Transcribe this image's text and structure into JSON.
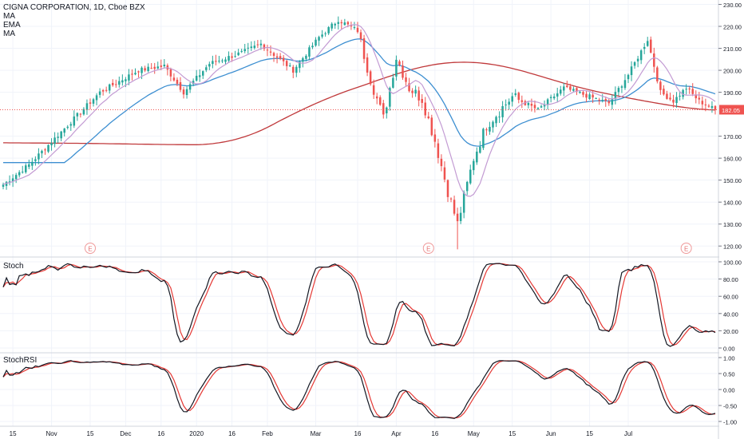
{
  "header": {
    "title": "CIGNA CORPORATION, 1D, Cboe BZX",
    "indicators": [
      "MA",
      "EMA",
      "MA"
    ]
  },
  "colors": {
    "up": "#26a69a",
    "down": "#ef5350",
    "ma_fast": "#c39bd3",
    "ma_mid": "#3d8fd1",
    "ma_slow": "#c0393b",
    "stoch_k": "#131722",
    "stoch_d": "#e53935",
    "last_tag": "#ef5350"
  },
  "price_axis": {
    "ticks": [
      "230.00",
      "220.00",
      "210.00",
      "200.00",
      "190.00",
      "170.00",
      "160.00",
      "150.00",
      "140.00",
      "130.00",
      "120.00"
    ],
    "last_price": "182.05"
  },
  "earnings": [
    "E",
    "E",
    "E"
  ],
  "panels": {
    "stoch": {
      "label": "Stoch",
      "ticks": [
        "100.00",
        "80.00",
        "60.00",
        "40.00",
        "20.00",
        "0.00"
      ]
    },
    "stochrsi": {
      "label": "StochRSI",
      "ticks": [
        "1.00",
        "0.50",
        "0.00",
        "-0.50",
        "-1.00"
      ]
    }
  },
  "x_axis": {
    "labels": [
      "15",
      "Nov",
      "15",
      "Dec",
      "16",
      "2020",
      "16",
      "Feb",
      "Mar",
      "16",
      "Apr",
      "16",
      "May",
      "15",
      "Jun",
      "15",
      "Jul"
    ]
  },
  "chart_data": {
    "type": "candlestick",
    "title": "CIGNA CORPORATION, 1D, Cboe BZX",
    "ylim": [
      115,
      232
    ],
    "x_labels": [
      "15",
      "Nov",
      "15",
      "Dec",
      "16",
      "2020",
      "16",
      "Feb",
      "Mar",
      "16",
      "Apr",
      "16",
      "May",
      "15",
      "Jun",
      "15",
      "Jul"
    ],
    "close_keypoints": [
      {
        "bar": 0,
        "close": 148
      },
      {
        "bar": 8,
        "close": 157
      },
      {
        "bar": 18,
        "close": 172
      },
      {
        "bar": 30,
        "close": 190
      },
      {
        "bar": 42,
        "close": 200
      },
      {
        "bar": 50,
        "close": 202
      },
      {
        "bar": 56,
        "close": 190
      },
      {
        "bar": 64,
        "close": 203
      },
      {
        "bar": 74,
        "close": 208
      },
      {
        "bar": 80,
        "close": 212
      },
      {
        "bar": 90,
        "close": 200
      },
      {
        "bar": 98,
        "close": 215
      },
      {
        "bar": 104,
        "close": 223
      },
      {
        "bar": 110,
        "close": 218
      },
      {
        "bar": 114,
        "close": 196
      },
      {
        "bar": 118,
        "close": 178
      },
      {
        "bar": 122,
        "close": 206
      },
      {
        "bar": 126,
        "close": 192
      },
      {
        "bar": 130,
        "close": 187
      },
      {
        "bar": 134,
        "close": 168
      },
      {
        "bar": 138,
        "close": 145
      },
      {
        "bar": 141,
        "close": 130
      },
      {
        "bar": 146,
        "close": 160
      },
      {
        "bar": 150,
        "close": 175
      },
      {
        "bar": 158,
        "close": 188
      },
      {
        "bar": 166,
        "close": 182
      },
      {
        "bar": 174,
        "close": 192
      },
      {
        "bar": 182,
        "close": 188
      },
      {
        "bar": 188,
        "close": 185
      },
      {
        "bar": 194,
        "close": 198
      },
      {
        "bar": 200,
        "close": 214
      },
      {
        "bar": 204,
        "close": 190
      },
      {
        "bar": 208,
        "close": 186
      },
      {
        "bar": 212,
        "close": 192
      },
      {
        "bar": 216,
        "close": 186
      },
      {
        "bar": 221,
        "close": 182.05
      }
    ],
    "moving_averages": [
      {
        "name": "MA",
        "role": "short"
      },
      {
        "name": "EMA",
        "role": "medium"
      },
      {
        "name": "MA",
        "role": "long"
      }
    ],
    "oscillators": [
      {
        "name": "Stoch",
        "range": [
          0,
          100
        ]
      },
      {
        "name": "StochRSI",
        "range": [
          -1,
          1
        ]
      }
    ],
    "last_price": 182.05
  }
}
